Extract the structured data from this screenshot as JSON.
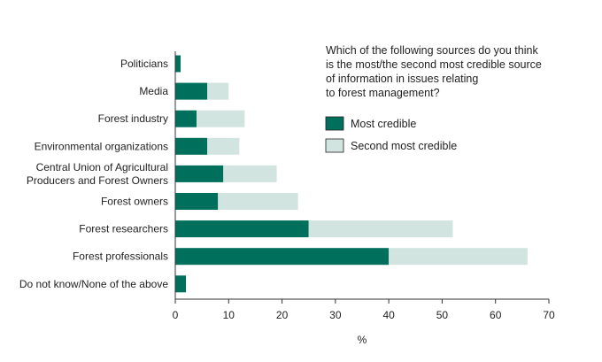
{
  "chart_data": {
    "type": "bar",
    "orientation": "horizontal",
    "stacked": true,
    "title": "",
    "question_lines": [
      "Which of the following sources do you think",
      "is the most/the second most credible source",
      "of information in issues relating",
      "to forest management?"
    ],
    "xlabel": "%",
    "xlim": [
      0,
      70
    ],
    "xticks": [
      0,
      10,
      20,
      30,
      40,
      50,
      60,
      70
    ],
    "categories": [
      [
        "Politicians"
      ],
      [
        "Media"
      ],
      [
        "Forest industry"
      ],
      [
        "Environmental organizations"
      ],
      [
        "Central Union of Agricultural",
        "Producers and Forest Owners"
      ],
      [
        "Forest owners"
      ],
      [
        "Forest researchers"
      ],
      [
        "Forest professionals"
      ],
      [
        "Do not know/None of the above"
      ]
    ],
    "series": [
      {
        "name": "Most credible",
        "color": "#006f5c",
        "values": [
          1,
          6,
          4,
          6,
          9,
          8,
          25,
          40,
          2
        ]
      },
      {
        "name": "Second most credible",
        "color": "#d1e4e0",
        "values": [
          0,
          4,
          9,
          6,
          10,
          15,
          27,
          26,
          0
        ]
      }
    ],
    "legend_position": "right",
    "grid": false
  }
}
